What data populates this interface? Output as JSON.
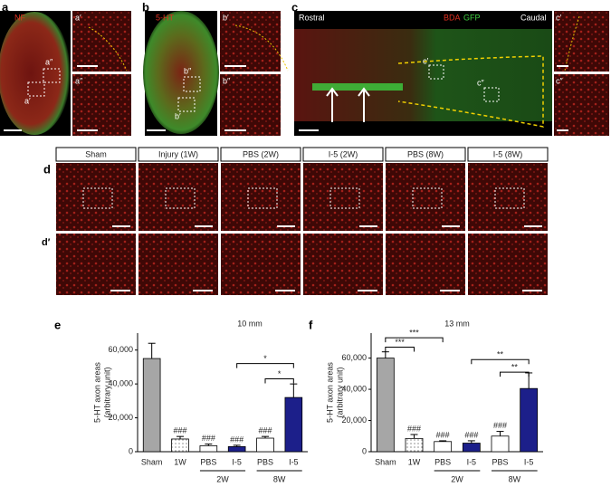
{
  "panel_a": {
    "letter": "a",
    "stain": "NF",
    "box_labels": [
      "a″",
      "a′"
    ],
    "inset_labels": [
      "a′",
      "a″"
    ]
  },
  "panel_b": {
    "letter": "b",
    "stain": "5-HT",
    "box_labels": [
      "b″",
      "b′"
    ],
    "inset_labels": [
      "b′",
      "b″"
    ]
  },
  "panel_c": {
    "letter": "c",
    "rostral": "Rostral",
    "caudal": "Caudal",
    "stain_1": "BDA",
    "stain_2": "GFP",
    "box_labels": [
      "c′",
      "c″"
    ],
    "inset_labels": [
      "c′",
      "c″"
    ]
  },
  "panel_d": {
    "letter": "d",
    "letter_2": "d′",
    "groups": [
      "Sham",
      "Injury (1W)",
      "PBS (2W)",
      "I-5 (2W)",
      "PBS (8W)",
      "I-5 (8W)"
    ]
  },
  "chart_data": [
    {
      "type": "bar",
      "panel_label": "e",
      "title": "10 mm",
      "ylabel": [
        "5-HT axon areas",
        "(arbitrary unit)"
      ],
      "categories": [
        "Sham",
        "1W",
        "PBS",
        "I-5",
        "PBS",
        "I-5"
      ],
      "groups": [
        {
          "label": "2W",
          "start": 2,
          "end": 3
        },
        {
          "label": "8W",
          "start": 4,
          "end": 5
        }
      ],
      "values": [
        55000,
        7500,
        3500,
        3000,
        8000,
        32000
      ],
      "errors": [
        9000,
        1500,
        1000,
        800,
        1000,
        8000
      ],
      "colors": [
        "#a6a6a6",
        "#ffffff",
        "#ffffff",
        "#1c1f8a",
        "#ffffff",
        "#1c1f8a"
      ],
      "hatches": [
        false,
        true,
        false,
        false,
        false,
        false
      ],
      "annotations": [
        null,
        "###",
        "###",
        "###",
        "###",
        null
      ],
      "brackets": [
        {
          "from": 3,
          "to": 5,
          "y": 52000,
          "label": "*"
        },
        {
          "from": 4,
          "to": 5,
          "y": 43000,
          "label": "*"
        }
      ],
      "ylim": [
        0,
        70000
      ],
      "yticks": [
        0,
        {
          "value": 20000,
          "label": "20,000"
        },
        {
          "value": 40000,
          "label": "40,000"
        },
        {
          "value": 60000,
          "label": "60,000"
        }
      ]
    },
    {
      "type": "bar",
      "panel_label": "f",
      "title": "13 mm",
      "ylabel": [
        "5-HT axon areas",
        "(arbitrary unit)"
      ],
      "categories": [
        "Sham",
        "1W",
        "PBS",
        "I-5",
        "PBS",
        "I-5"
      ],
      "groups": [
        {
          "label": "2W",
          "start": 2,
          "end": 3
        },
        {
          "label": "8W",
          "start": 4,
          "end": 5
        }
      ],
      "values": [
        60000,
        8500,
        6500,
        5500,
        10000,
        40500
      ],
      "errors": [
        4000,
        2500,
        500,
        1500,
        3000,
        10000
      ],
      "colors": [
        "#a6a6a6",
        "#ffffff",
        "#ffffff",
        "#1c1f8a",
        "#ffffff",
        "#1c1f8a"
      ],
      "hatches": [
        false,
        true,
        false,
        false,
        false,
        false
      ],
      "annotations": [
        null,
        "###",
        "###",
        "###",
        "###",
        null
      ],
      "brackets": [
        {
          "from": 0,
          "to": 1,
          "y": 67000,
          "label": "***"
        },
        {
          "from": 0,
          "to": 2,
          "y": 73000,
          "label": "***"
        },
        {
          "from": 3,
          "to": 5,
          "y": 59000,
          "label": "**"
        },
        {
          "from": 4,
          "to": 5,
          "y": 51000,
          "label": "**"
        }
      ],
      "ylim": [
        0,
        76000
      ],
      "yticks": [
        0,
        {
          "value": 20000,
          "label": "20,000"
        },
        {
          "value": 40000,
          "label": "40,000"
        },
        {
          "value": 60000,
          "label": "60,000"
        }
      ]
    }
  ]
}
